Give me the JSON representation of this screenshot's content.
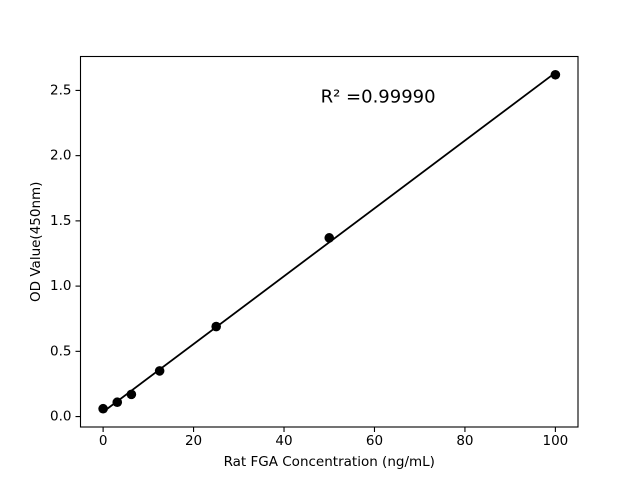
{
  "figure": {
    "background": "#ffffff"
  },
  "chart_data": {
    "type": "scatter",
    "xlabel": "Rat FGA Concentration (ng/mL)",
    "ylabel": "OD Value(450nm)",
    "annotation": {
      "text": "R² =0.99990",
      "x": 60.8,
      "y": 2.45
    },
    "points": {
      "x": [
        0,
        3.125,
        6.25,
        12.5,
        25,
        50,
        100
      ],
      "y": [
        0.06,
        0.11,
        0.17,
        0.35,
        0.69,
        1.37,
        2.62
      ]
    },
    "fit_line": {
      "slope": 0.026,
      "intercept": 0.036,
      "x_start": 0,
      "x_end": 100
    },
    "xticks": {
      "values": [
        0,
        20,
        40,
        60,
        80,
        100
      ],
      "labels": [
        "0",
        "20",
        "40",
        "60",
        "80",
        "100"
      ]
    },
    "yticks": {
      "values": [
        0,
        0.5,
        1,
        1.5,
        2,
        2.5
      ],
      "labels": [
        "0.0",
        "0.5",
        "1.0",
        "1.5",
        "2.0",
        "2.5"
      ]
    },
    "xlim": [
      -5,
      105
    ],
    "ylim": [
      -0.08,
      2.76
    ],
    "grid": false,
    "legend": false,
    "marker_color": "#000000",
    "line_color": "#000000",
    "axis_color": "#000000",
    "background": "#ffffff"
  }
}
